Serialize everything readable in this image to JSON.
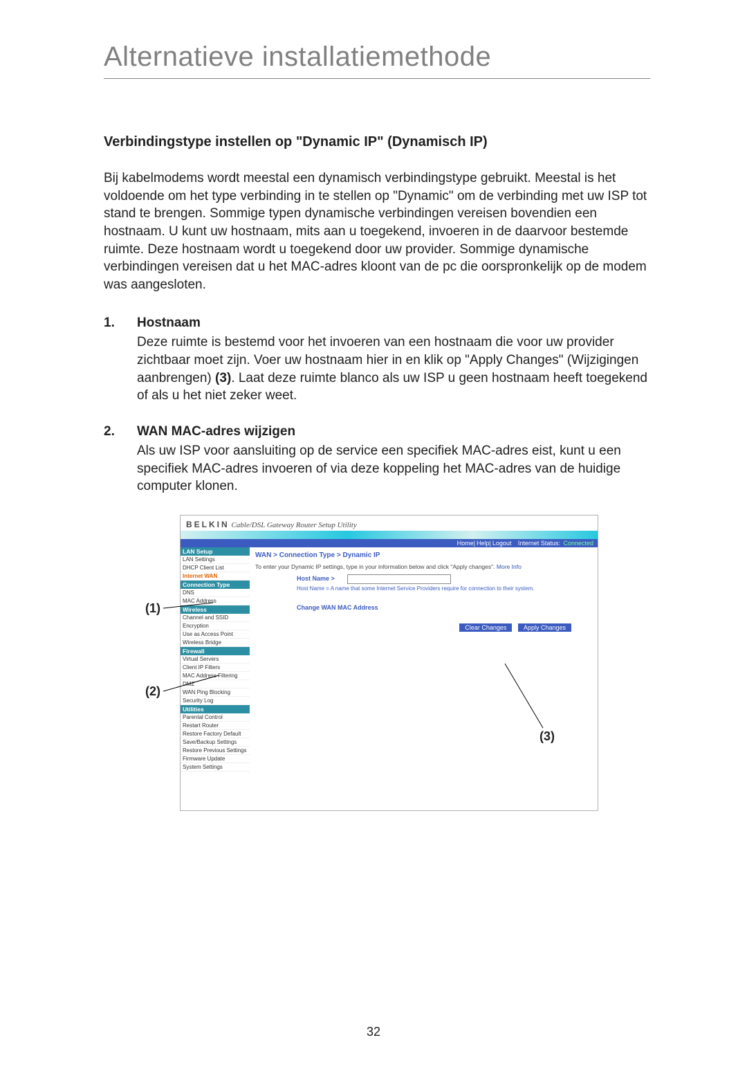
{
  "page_title": "Alternatieve installatiemethode",
  "section_heading": "Verbindingstype instellen op \"Dynamic IP\" (Dynamisch IP)",
  "intro": "Bij kabelmodems wordt meestal een dynamisch verbindingstype gebruikt. Meestal is het voldoende om het type verbinding in te stellen op \"Dynamic\" om de verbinding met uw ISP tot stand te brengen. Sommige typen dynamische verbindingen vereisen bovendien een hostnaam. U kunt uw hostnaam, mits aan u toegekend, invoeren in de daarvoor bestemde ruimte. Deze hostnaam wordt u toegekend door uw provider. Sommige dynamische verbindingen vereisen dat u het MAC-adres kloont van de pc die oorspronkelijk op de modem was aangesloten.",
  "items": [
    {
      "num": "1.",
      "head": "Hostnaam",
      "body_before": "Deze ruimte is bestemd voor het invoeren van een hostnaam die voor uw provider zichtbaar moet zijn. Voer uw hostnaam hier in en klik op \"Apply Changes\" (Wijzigingen aanbrengen) ",
      "body_bold": "(3)",
      "body_after": ". Laat deze ruimte blanco als uw ISP u geen hostnaam heeft toegekend of als u het niet zeker weet."
    },
    {
      "num": "2.",
      "head": "WAN MAC-adres wijzigen",
      "body_before": "Als uw ISP voor aansluiting op de service een specifiek MAC-adres eist, kunt u een specifiek MAC-adres invoeren of via deze koppeling het MAC-adres van de huidige computer klonen.",
      "body_bold": "",
      "body_after": ""
    }
  ],
  "callouts": {
    "c1": "(1)",
    "c2": "(2)",
    "c3": "(3)"
  },
  "page_number": "32",
  "router": {
    "brand": "BELKIN",
    "brand_suffix": " Cable/DSL Gateway Router Setup Utility",
    "topbar": {
      "links": [
        "Home",
        "Help",
        "Logout"
      ],
      "status_label": "Internet Status:",
      "status_value": "Connected"
    },
    "sidebar": [
      {
        "type": "cat",
        "label": "LAN Setup"
      },
      {
        "type": "item",
        "label": "LAN Settings"
      },
      {
        "type": "item",
        "label": "DHCP Client List"
      },
      {
        "type": "item",
        "label": "Internet WAN",
        "hot": true
      },
      {
        "type": "cat",
        "label": "Connection Type"
      },
      {
        "type": "item",
        "label": "DNS"
      },
      {
        "type": "item",
        "label": "MAC Address"
      },
      {
        "type": "cat",
        "label": "Wireless"
      },
      {
        "type": "item",
        "label": "Channel and SSID"
      },
      {
        "type": "item",
        "label": "Encryption"
      },
      {
        "type": "item",
        "label": "Use as Access Point"
      },
      {
        "type": "item",
        "label": "Wireless Bridge"
      },
      {
        "type": "cat",
        "label": "Firewall"
      },
      {
        "type": "item",
        "label": "Virtual Servers"
      },
      {
        "type": "item",
        "label": "Client IP Filters"
      },
      {
        "type": "item",
        "label": "MAC Address Filtering"
      },
      {
        "type": "item",
        "label": "DMZ"
      },
      {
        "type": "item",
        "label": "WAN Ping Blocking"
      },
      {
        "type": "item",
        "label": "Security Log"
      },
      {
        "type": "cat",
        "label": "Utilities"
      },
      {
        "type": "item",
        "label": "Parental Control"
      },
      {
        "type": "item",
        "label": "Restart Router"
      },
      {
        "type": "item",
        "label": "Restore Factory Default"
      },
      {
        "type": "item",
        "label": "Save/Backup Settings"
      },
      {
        "type": "item",
        "label": "Restore Previous Settings"
      },
      {
        "type": "item",
        "label": "Firmware Update"
      },
      {
        "type": "item",
        "label": "System Settings"
      }
    ],
    "breadcrumb": "WAN > Connection Type > Dynamic IP",
    "instruction_pre": "To enter your Dynamic IP settings, type in your information below and click \"Apply changes\". ",
    "instruction_link": "More Info",
    "hostname_label": "Host Name >",
    "hostname_hint": "Host Name = A name that some Internet Service Providers require for connection to their system.",
    "change_mac": "Change WAN MAC Address",
    "clear_btn": "Clear Changes",
    "apply_btn": "Apply Changes"
  },
  "colors": {
    "title_gray": "#808080",
    "text": "#202020",
    "router_blue": "#3b5bc0",
    "router_teal": "#2c8fa3",
    "status_green": "#7fff9f",
    "hot_orange": "#e06000"
  }
}
